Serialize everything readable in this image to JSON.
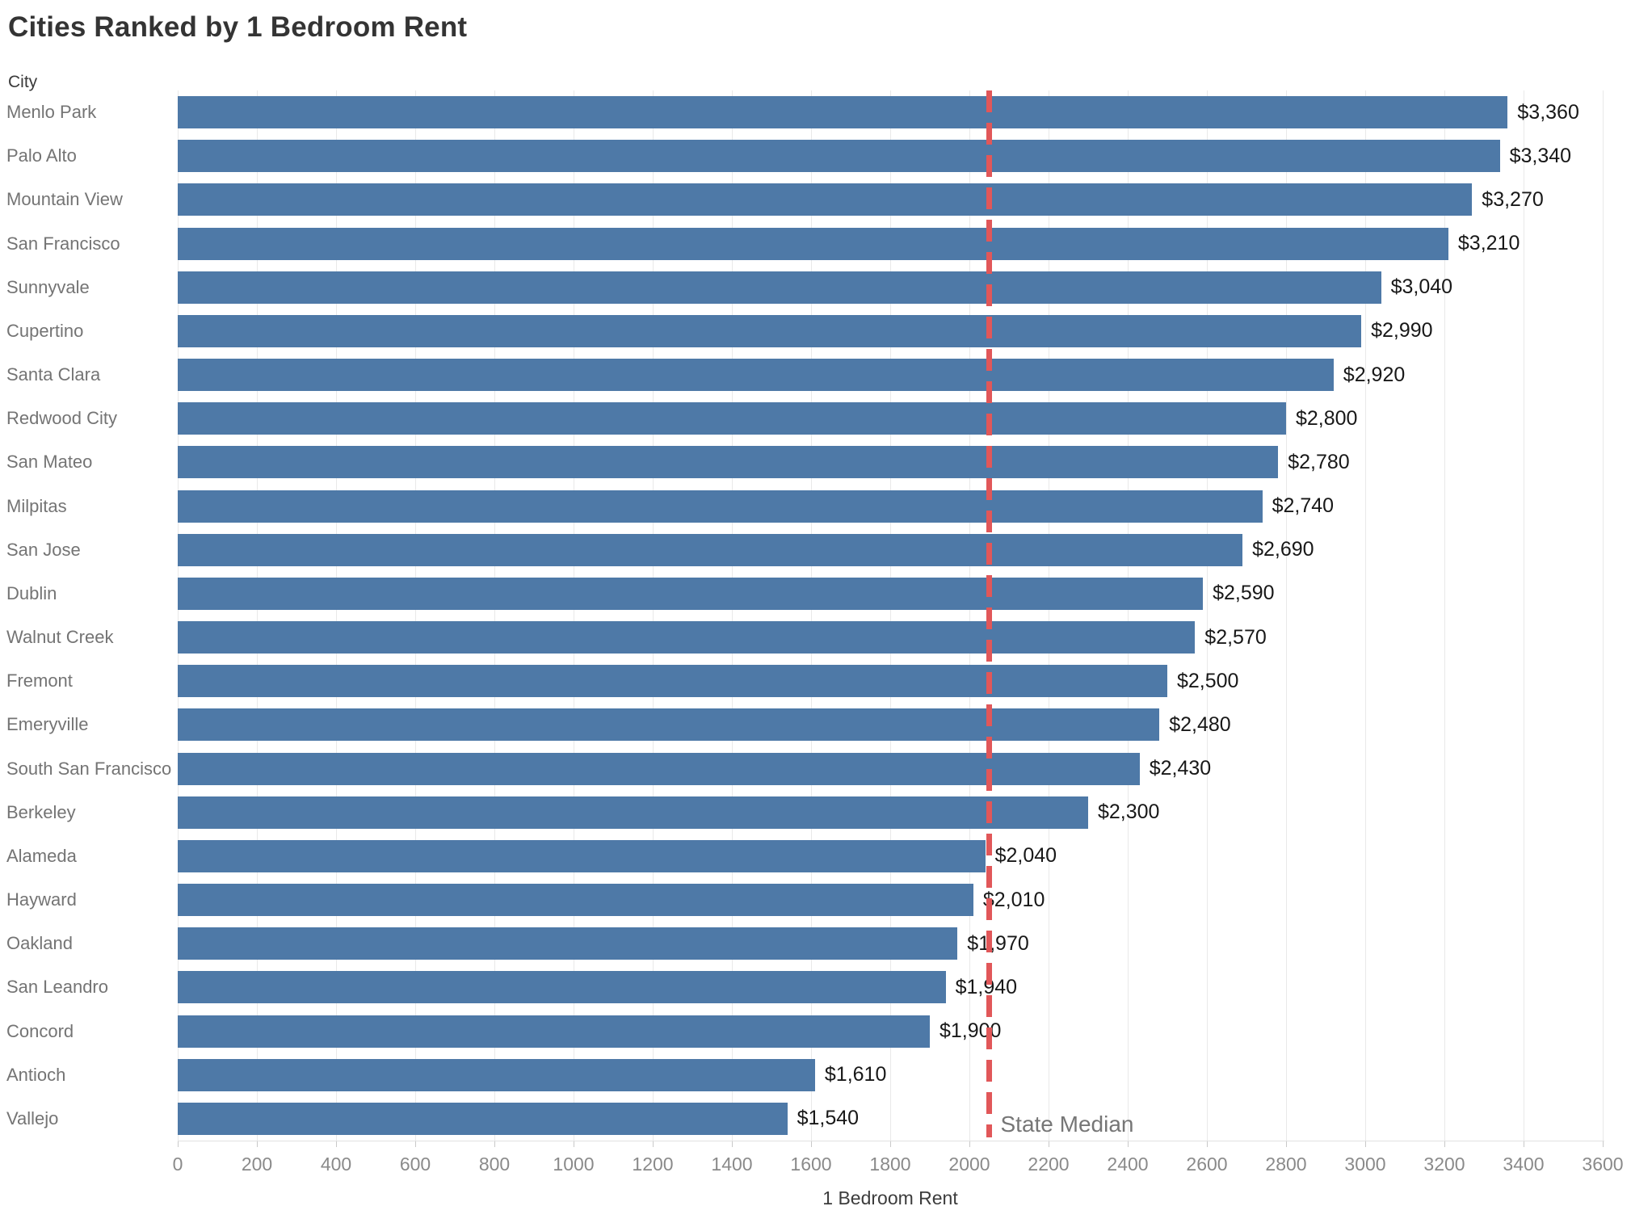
{
  "chart_data": {
    "type": "bar",
    "orientation": "horizontal",
    "title": "Cities Ranked by 1 Bedroom Rent",
    "ylabel": "City",
    "xlabel": "1 Bedroom Rent",
    "categories": [
      "Menlo Park",
      "Palo Alto",
      "Mountain View",
      "San Francisco",
      "Sunnyvale",
      "Cupertino",
      "Santa Clara",
      "Redwood City",
      "San Mateo",
      "Milpitas",
      "San Jose",
      "Dublin",
      "Walnut Creek",
      "Fremont",
      "Emeryville",
      "South San Francisco",
      "Berkeley",
      "Alameda",
      "Hayward",
      "Oakland",
      "San Leandro",
      "Concord",
      "Antioch",
      "Vallejo"
    ],
    "values": [
      3360,
      3340,
      3270,
      3210,
      3040,
      2990,
      2920,
      2800,
      2780,
      2740,
      2690,
      2590,
      2570,
      2500,
      2480,
      2430,
      2300,
      2040,
      2010,
      1970,
      1940,
      1900,
      1610,
      1540
    ],
    "value_labels": [
      "$3,360",
      "$3,340",
      "$3,270",
      "$3,210",
      "$3,040",
      "$2,990",
      "$2,920",
      "$2,800",
      "$2,780",
      "$2,740",
      "$2,690",
      "$2,590",
      "$2,570",
      "$2,500",
      "$2,480",
      "$2,430",
      "$2,300",
      "$2,040",
      "$2,010",
      "$1,970",
      "$1,940",
      "$1,900",
      "$1,610",
      "$1,540"
    ],
    "xlim": [
      0,
      3600
    ],
    "x_ticks": [
      0,
      200,
      400,
      600,
      800,
      1000,
      1200,
      1400,
      1600,
      1800,
      2000,
      2200,
      2400,
      2600,
      2800,
      3000,
      3200,
      3400,
      3600
    ],
    "grid": "vertical",
    "legend": "none",
    "bar_color": "#4e79a7",
    "grid_color": "#e9e9e9",
    "reference_line": {
      "label": "State Median",
      "value": 2050,
      "color": "#e15759",
      "style": "dashed"
    }
  }
}
